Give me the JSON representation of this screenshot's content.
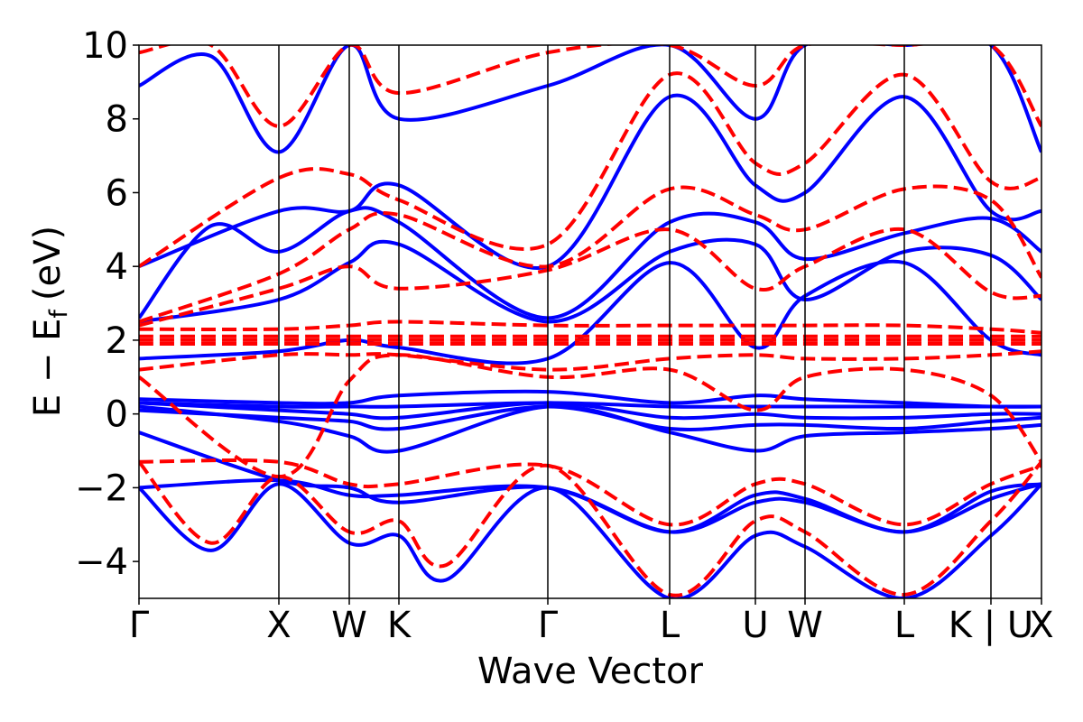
{
  "chart_data": {
    "type": "line",
    "title": "",
    "xlabel": "Wave Vector",
    "ylabel": "E − E",
    "ylabel_subscript": "f",
    "ylabel_unit": "(eV)",
    "ylim": [
      -5,
      10
    ],
    "yticks": [
      -4,
      -2,
      0,
      2,
      4,
      6,
      8,
      10
    ],
    "ytick_labels": [
      "−4",
      "−2",
      "0",
      "2",
      "4",
      "6",
      "8",
      "10"
    ],
    "xlim": [
      0,
      1
    ],
    "kpoints": [
      {
        "label": "Γ",
        "x": 0.0
      },
      {
        "label": "X",
        "x": 0.155
      },
      {
        "label": "W",
        "x": 0.233
      },
      {
        "label": "K",
        "x": 0.288
      },
      {
        "label": "Γ",
        "x": 0.453
      },
      {
        "label": "L",
        "x": 0.588
      },
      {
        "label": "U",
        "x": 0.683
      },
      {
        "label": "W",
        "x": 0.738
      },
      {
        "label": "L",
        "x": 0.848
      },
      {
        "label": "K | U",
        "x": 0.944
      },
      {
        "label": "X",
        "x": 1.0
      }
    ],
    "grid": false,
    "legend": "none",
    "colors": {
      "series_a": "#0000ff",
      "series_b": "#ff0000"
    },
    "series": [
      {
        "style": "solid",
        "color": "#0000ff",
        "bands": [
          {
            "x": [
              0,
              0.155,
              0.233,
              0.288,
              0.453,
              0.588,
              0.683,
              0.738,
              0.848,
              0.944,
              1.0
            ],
            "y": [
              -2.0,
              -1.8,
              -2.2,
              -2.2,
              -2.0,
              -3.2,
              -2.2,
              -2.3,
              -3.2,
              -2.1,
              -1.9
            ]
          },
          {
            "x": [
              0,
              0.08,
              0.155,
              0.233,
              0.288,
              0.34,
              0.453,
              0.588,
              0.683,
              0.738,
              0.848,
              0.944,
              1.0
            ],
            "y": [
              -2.0,
              -3.7,
              -1.9,
              -3.5,
              -3.3,
              -4.5,
              -2.0,
              -5.0,
              -3.3,
              -3.6,
              -5.0,
              -3.3,
              -1.9
            ]
          },
          {
            "x": [
              0,
              0.155,
              0.233,
              0.288,
              0.453,
              0.588,
              0.683,
              0.738,
              0.848,
              0.944,
              1.0
            ],
            "y": [
              -0.5,
              -1.8,
              -2.0,
              -2.4,
              -2.0,
              -3.2,
              -2.4,
              -2.4,
              -3.2,
              -2.3,
              -1.9
            ]
          },
          {
            "x": [
              0,
              0.155,
              0.233,
              0.288,
              0.453,
              0.588,
              0.683,
              0.738,
              0.848,
              0.944,
              1.0
            ],
            "y": [
              0.2,
              -0.2,
              -0.6,
              -1.0,
              0.2,
              -0.5,
              -1.0,
              -0.6,
              -0.5,
              -0.4,
              -0.3
            ]
          },
          {
            "x": [
              0,
              0.155,
              0.233,
              0.288,
              0.453,
              0.588,
              0.683,
              0.738,
              0.848,
              0.944,
              1.0
            ],
            "y": [
              0.1,
              -0.1,
              -0.2,
              -0.4,
              0.2,
              -0.4,
              -0.3,
              -0.3,
              -0.4,
              -0.2,
              -0.1
            ]
          },
          {
            "x": [
              0,
              0.155,
              0.233,
              0.288,
              0.453,
              0.588,
              0.683,
              0.738,
              0.848,
              0.944,
              1.0
            ],
            "y": [
              0.3,
              0.1,
              0.0,
              -0.1,
              0.3,
              -0.1,
              0.0,
              -0.1,
              -0.1,
              0.0,
              0.0
            ]
          },
          {
            "x": [
              0,
              0.155,
              0.233,
              0.288,
              0.453,
              0.588,
              0.683,
              0.738,
              0.848,
              0.944,
              1.0
            ],
            "y": [
              0.3,
              0.2,
              0.2,
              0.2,
              0.3,
              0.2,
              0.2,
              0.2,
              0.2,
              0.2,
              0.2
            ]
          },
          {
            "x": [
              0,
              0.155,
              0.233,
              0.288,
              0.453,
              0.588,
              0.683,
              0.738,
              0.848,
              0.944,
              1.0
            ],
            "y": [
              0.4,
              0.3,
              0.3,
              0.5,
              0.6,
              0.3,
              0.5,
              0.4,
              0.3,
              0.2,
              0.2
            ]
          },
          {
            "x": [
              0,
              0.155,
              0.233,
              0.288,
              0.453,
              0.588,
              0.683,
              0.738,
              0.848,
              0.944,
              1.0
            ],
            "y": [
              1.5,
              1.7,
              2.0,
              1.8,
              1.5,
              4.1,
              1.8,
              3.2,
              4.1,
              2.0,
              1.6
            ]
          },
          {
            "x": [
              0,
              0.155,
              0.233,
              0.288,
              0.453,
              0.588,
              0.683,
              0.738,
              0.848,
              0.944,
              1.0
            ],
            "y": [
              2.5,
              3.1,
              4.1,
              4.6,
              2.5,
              4.4,
              4.6,
              3.1,
              4.4,
              4.3,
              3.1
            ]
          },
          {
            "x": [
              0,
              0.08,
              0.155,
              0.233,
              0.288,
              0.453,
              0.588,
              0.683,
              0.738,
              0.848,
              0.944,
              1.0
            ],
            "y": [
              2.6,
              5.1,
              4.4,
              5.5,
              5.2,
              2.6,
              5.2,
              5.2,
              4.2,
              4.9,
              5.3,
              4.4
            ]
          },
          {
            "x": [
              0,
              0.155,
              0.233,
              0.288,
              0.453,
              0.588,
              0.683,
              0.738,
              0.848,
              0.944,
              1.0
            ],
            "y": [
              4.0,
              5.5,
              5.5,
              6.2,
              4.0,
              8.6,
              6.2,
              6.0,
              8.6,
              5.5,
              5.5
            ]
          },
          {
            "x": [
              0,
              0.08,
              0.155,
              0.233,
              0.288,
              0.453,
              0.588,
              0.683,
              0.738,
              0.848,
              0.944,
              1.0
            ],
            "y": [
              8.9,
              9.7,
              7.1,
              10.0,
              8.0,
              8.9,
              10.0,
              8.0,
              10.0,
              10.0,
              10.0,
              7.1
            ]
          }
        ]
      },
      {
        "style": "dashed",
        "color": "#ff0000",
        "bands": [
          {
            "x": [
              0,
              0.08,
              0.155,
              0.233,
              0.288,
              0.34,
              0.453,
              0.588,
              0.683,
              0.738,
              0.848,
              0.944,
              1.0
            ],
            "y": [
              -1.3,
              -3.5,
              -1.7,
              -3.2,
              -2.9,
              -4.1,
              -1.4,
              -4.9,
              -2.9,
              -3.2,
              -4.9,
              -2.9,
              -1.3
            ]
          },
          {
            "x": [
              0,
              0.155,
              0.233,
              0.288,
              0.453,
              0.588,
              0.683,
              0.738,
              0.848,
              0.944,
              1.0
            ],
            "y": [
              -1.3,
              -1.3,
              -1.9,
              -1.9,
              -1.4,
              -3.0,
              -1.9,
              -1.9,
              -3.0,
              -1.9,
              -1.4
            ]
          },
          {
            "x": [
              0,
              0.155,
              0.233,
              0.288,
              0.453,
              0.588,
              0.683,
              0.738,
              0.848,
              0.944,
              1.0
            ],
            "y": [
              1.0,
              -1.7,
              0.9,
              1.6,
              1.0,
              1.2,
              0.1,
              1.0,
              1.2,
              0.5,
              -1.3
            ]
          },
          {
            "x": [
              0,
              0.155,
              0.233,
              0.288,
              0.453,
              0.588,
              0.683,
              0.738,
              0.848,
              0.944,
              1.0
            ],
            "y": [
              1.2,
              1.6,
              1.6,
              1.6,
              1.2,
              1.5,
              1.6,
              1.5,
              1.5,
              1.6,
              1.7
            ]
          },
          {
            "x": [
              0,
              0.155,
              0.233,
              0.288,
              0.453,
              0.588,
              0.683,
              0.738,
              0.848,
              0.944,
              1.0
            ],
            "y": [
              1.9,
              1.9,
              1.9,
              1.9,
              1.9,
              1.9,
              1.9,
              1.9,
              1.9,
              1.9,
              1.9
            ]
          },
          {
            "x": [
              0,
              0.155,
              0.233,
              0.288,
              0.453,
              0.588,
              0.683,
              0.738,
              0.848,
              0.944,
              1.0
            ],
            "y": [
              2.0,
              2.0,
              2.0,
              2.0,
              2.0,
              2.0,
              2.0,
              2.0,
              2.0,
              2.0,
              2.0
            ]
          },
          {
            "x": [
              0,
              0.155,
              0.233,
              0.288,
              0.453,
              0.588,
              0.683,
              0.738,
              0.848,
              0.944,
              1.0
            ],
            "y": [
              2.1,
              2.1,
              2.1,
              2.1,
              2.1,
              2.1,
              2.1,
              2.1,
              2.1,
              2.1,
              2.1
            ]
          },
          {
            "x": [
              0,
              0.155,
              0.233,
              0.288,
              0.453,
              0.588,
              0.683,
              0.738,
              0.848,
              0.944,
              1.0
            ],
            "y": [
              2.3,
              2.3,
              2.4,
              2.5,
              2.4,
              2.4,
              2.4,
              2.4,
              2.4,
              2.3,
              2.2
            ]
          },
          {
            "x": [
              0,
              0.155,
              0.233,
              0.288,
              0.453,
              0.588,
              0.683,
              0.738,
              0.848,
              0.944,
              1.0
            ],
            "y": [
              2.4,
              3.4,
              4.0,
              3.4,
              3.9,
              5.0,
              3.4,
              4.0,
              5.0,
              3.3,
              3.2
            ]
          },
          {
            "x": [
              0,
              0.155,
              0.233,
              0.288,
              0.453,
              0.588,
              0.683,
              0.738,
              0.848,
              0.944,
              1.0
            ],
            "y": [
              2.5,
              3.8,
              5.0,
              5.4,
              4.0,
              6.1,
              5.4,
              5.0,
              6.1,
              5.8,
              3.7
            ]
          },
          {
            "x": [
              0,
              0.155,
              0.233,
              0.288,
              0.453,
              0.588,
              0.683,
              0.738,
              0.848,
              0.944,
              1.0
            ],
            "y": [
              4.0,
              6.4,
              6.5,
              5.8,
              4.6,
              9.2,
              6.8,
              6.8,
              9.2,
              6.3,
              6.4
            ]
          },
          {
            "x": [
              0,
              0.08,
              0.155,
              0.233,
              0.288,
              0.453,
              0.588,
              0.683,
              0.738,
              0.848,
              0.944,
              1.0
            ],
            "y": [
              9.8,
              10.0,
              7.8,
              10.0,
              8.7,
              9.8,
              10.0,
              8.9,
              10.0,
              10.0,
              10.0,
              7.8
            ]
          }
        ]
      }
    ]
  }
}
